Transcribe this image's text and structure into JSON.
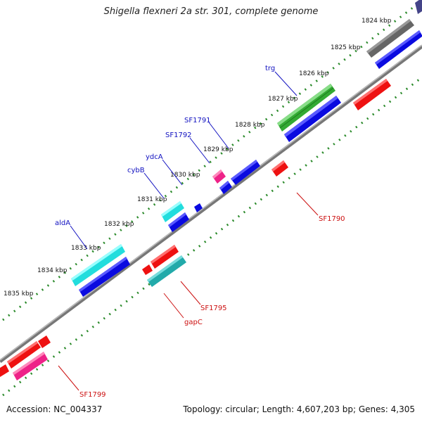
{
  "title": "Shigella flexneri 2a str. 301, complete genome",
  "footer": {
    "accession": "Accession: NC_004337",
    "summary": "Topology: circular; Length: 4,607,203 bp; Genes: 4,305"
  },
  "colors": {
    "backbone": "#8a8a8a",
    "tick": "#2a8a2a",
    "label_forward": "#1010c0",
    "label_reverse": "#cc1010",
    "blue": "#0a0ae0",
    "cyan": "#22dddd",
    "green": "#33aa33",
    "red": "#ee1111",
    "pink": "#ee2288",
    "gray": "#666666",
    "teal": "#22aaaa",
    "navy": "#444488"
  },
  "kbp_labels": [
    "1824 kbp",
    "1825 kbp",
    "1826 kbp",
    "1827 kbp",
    "1828 kbp",
    "1829 kbp",
    "1830 kbp",
    "1831 kbp",
    "1832 kbp",
    "1833 kbp",
    "1834 kbp",
    "1835 kbp"
  ],
  "gene_labels": {
    "trg": "trg",
    "SF1791": "SF1791",
    "SF1792": "SF1792",
    "ydcA": "ydcA",
    "cybB": "cybB",
    "aldA": "aldA",
    "SF1790": "SF1790",
    "SF1795": "SF1795",
    "gapC": "gapC",
    "SF1799": "SF1799"
  }
}
